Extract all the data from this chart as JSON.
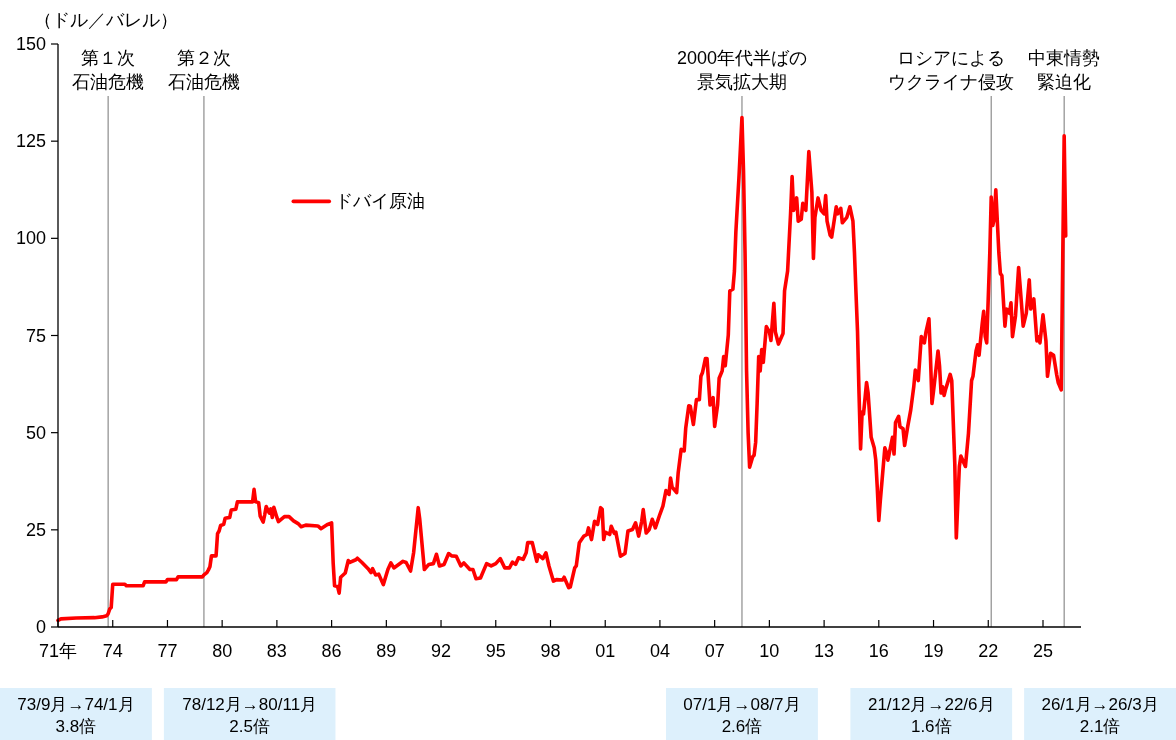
{
  "chart_data": {
    "type": "line",
    "ylabel": "（ドル／バレル）",
    "legend": "top left",
    "x": [
      "1971-01",
      "1971-03",
      "1972-01",
      "1973-01",
      "1973-06",
      "1973-09",
      "1973-10",
      "1973-11",
      "1973-12",
      "1974-01",
      "1974-09",
      "1974-10",
      "1975-09",
      "1975-10",
      "1976-12",
      "1977-01",
      "1977-07",
      "1977-08",
      "1978-12",
      "1979-01",
      "1979-03",
      "1979-04",
      "1979-05",
      "1979-06",
      "1979-09",
      "1979-10",
      "1979-11",
      "1979-12",
      "1980-02",
      "1980-03",
      "1980-06",
      "1980-07",
      "1980-10",
      "1980-11",
      "1981-09",
      "1981-10",
      "1981-11",
      "1982-01",
      "1982-02",
      "1982-04",
      "1982-05",
      "1982-06",
      "1982-08",
      "1982-09",
      "1982-10",
      "1982-11",
      "1983-01",
      "1983-02",
      "1983-06",
      "1983-09",
      "1983-12",
      "1984-03",
      "1984-05",
      "1984-08",
      "1985-04",
      "1985-06",
      "1985-10",
      "1986-01",
      "1986-02",
      "1986-03",
      "1986-05",
      "1986-06",
      "1986-07",
      "1986-10",
      "1986-12",
      "1987-01",
      "1987-05",
      "1987-06",
      "1987-09",
      "1988-01",
      "1988-03",
      "1988-04",
      "1988-06",
      "1988-08",
      "1988-11",
      "1989-02",
      "1989-04",
      "1989-06",
      "1989-12",
      "1990-02",
      "1990-05",
      "1990-07",
      "1990-10",
      "1990-11",
      "1991-02",
      "1991-05",
      "1991-08",
      "1991-10",
      "1991-12",
      "1992-03",
      "1992-06",
      "1992-08",
      "1992-11",
      "1993-02",
      "1993-04",
      "1993-08",
      "1993-10",
      "1993-12",
      "1994-03",
      "1994-07",
      "1994-10",
      "1995-01",
      "1995-04",
      "1995-07",
      "1995-10",
      "1995-12",
      "1996-02",
      "1996-04",
      "1996-07",
      "1996-09",
      "1996-10",
      "1997-01",
      "1997-04",
      "1997-05",
      "1997-08",
      "1997-10",
      "1997-12",
      "1998-03",
      "1998-05",
      "1998-09",
      "1998-10",
      "1999-01",
      "1999-02",
      "1999-05",
      "1999-06",
      "1999-08",
      "1999-11",
      "2000-01",
      "2000-02",
      "2000-04",
      "2000-06",
      "2000-08",
      "2000-10",
      "2000-11",
      "2000-12",
      "2001-01",
      "2001-04",
      "2001-05",
      "2001-07",
      "2001-08",
      "2001-11",
      "2002-02",
      "2002-04",
      "2002-07",
      "2002-09",
      "2002-11",
      "2003-01",
      "2003-02",
      "2003-04",
      "2003-06",
      "2003-08",
      "2003-10",
      "2004-01",
      "2004-03",
      "2004-05",
      "2004-07",
      "2004-08",
      "2004-09",
      "2004-12",
      "2005-01",
      "2005-03",
      "2005-05",
      "2005-06",
      "2005-08",
      "2005-09",
      "2005-11",
      "2006-01",
      "2006-03",
      "2006-04",
      "2006-05",
      "2006-07",
      "2006-08",
      "2006-10",
      "2006-12",
      "2007-01",
      "2007-03",
      "2007-04",
      "2007-06",
      "2007-07",
      "2007-08",
      "2007-10",
      "2007-11",
      "2008-01",
      "2008-02",
      "2008-03",
      "2008-05",
      "2008-07",
      "2008-08",
      "2008-09",
      "2008-10",
      "2008-11",
      "2008-12",
      "2009-02",
      "2009-03",
      "2009-04",
      "2009-05",
      "2009-06",
      "2009-07",
      "2009-08",
      "2009-09",
      "2009-11",
      "2010-01",
      "2010-02",
      "2010-04",
      "2010-05",
      "2010-07",
      "2010-10",
      "2010-11",
      "2011-01",
      "2011-03",
      "2011-04",
      "2011-05",
      "2011-07",
      "2011-08",
      "2011-10",
      "2011-11",
      "2012-01",
      "2012-03",
      "2012-05",
      "2012-06",
      "2012-07",
      "2012-09",
      "2012-11",
      "2013-01",
      "2013-02",
      "2013-03",
      "2013-05",
      "2013-06",
      "2013-09",
      "2013-10",
      "2013-12",
      "2014-01",
      "2014-04",
      "2014-06",
      "2014-08",
      "2014-09",
      "2014-10",
      "2014-11",
      "2014-12",
      "2015-01",
      "2015-02",
      "2015-03",
      "2015-05",
      "2015-06",
      "2015-08",
      "2015-10",
      "2015-11",
      "2015-12",
      "2016-01",
      "2016-02",
      "2016-05",
      "2016-06",
      "2016-07",
      "2016-10",
      "2016-11",
      "2016-12",
      "2017-02",
      "2017-03",
      "2017-05",
      "2017-06",
      "2017-08",
      "2017-10",
      "2017-12",
      "2018-01",
      "2018-03",
      "2018-05",
      "2018-07",
      "2018-08",
      "2018-10",
      "2018-11",
      "2018-12",
      "2019-01",
      "2019-04",
      "2019-05",
      "2019-06",
      "2019-07",
      "2019-08",
      "2019-09",
      "2019-12",
      "2020-01",
      "2020-03",
      "2020-04",
      "2020-06",
      "2020-07",
      "2020-10",
      "2020-12",
      "2021-02",
      "2021-03",
      "2021-05",
      "2021-06",
      "2021-07",
      "2021-09",
      "2021-10",
      "2021-11",
      "2021-12",
      "2022-02",
      "2022-03",
      "2022-04",
      "2022-05",
      "2022-06",
      "2022-08",
      "2022-09",
      "2022-10",
      "2022-12",
      "2023-01",
      "2023-03",
      "2023-04",
      "2023-05",
      "2023-07",
      "2023-09",
      "2023-10",
      "2023-12",
      "2024-02",
      "2024-04",
      "2024-05",
      "2024-07",
      "2024-09",
      "2024-10",
      "2024-11",
      "2025-01",
      "2025-03",
      "2025-04",
      "2025-06",
      "2025-08",
      "2025-10",
      "2025-11",
      "2025-12",
      "2026-01",
      "2026-03",
      "2026-04"
    ],
    "series": [
      {
        "name": "ドバイ原油",
        "color": "#ff0000",
        "values": [
          1.7,
          2.1,
          2.3,
          2.4,
          2.6,
          2.9,
          3.4,
          4.6,
          5.0,
          11.0,
          11.0,
          10.6,
          10.6,
          11.6,
          11.6,
          12.2,
          12.2,
          12.9,
          12.9,
          13.4,
          14.0,
          14.7,
          15.5,
          18.3,
          18.3,
          24.0,
          24.7,
          26.1,
          26.4,
          28.0,
          28.2,
          30.1,
          30.3,
          32.2,
          32.2,
          35.4,
          32.2,
          32.0,
          28.5,
          27.0,
          28.8,
          31.0,
          29.3,
          30.4,
          28.2,
          30.8,
          28.2,
          27.1,
          28.4,
          28.4,
          27.3,
          26.6,
          25.8,
          26.2,
          26.0,
          25.3,
          26.3,
          26.8,
          16.5,
          10.6,
          10.4,
          8.7,
          12.8,
          13.9,
          17.1,
          16.6,
          17.3,
          17.7,
          16.6,
          15.0,
          14.0,
          15.0,
          13.4,
          13.6,
          10.9,
          14.8,
          16.5,
          15.2,
          16.9,
          16.6,
          14.4,
          19.1,
          30.7,
          27.7,
          14.8,
          16.1,
          16.3,
          18.7,
          15.7,
          16.1,
          18.9,
          18.3,
          18.2,
          15.7,
          16.5,
          14.8,
          14.8,
          12.4,
          12.6,
          16.3,
          15.7,
          16.3,
          17.6,
          15.2,
          15.2,
          16.7,
          16.1,
          17.8,
          17.4,
          19.1,
          21.7,
          21.7,
          16.9,
          18.6,
          17.6,
          19.1,
          15.7,
          11.8,
          12.2,
          12.1,
          12.8,
          10.1,
          10.3,
          15.2,
          15.7,
          21.7,
          23.4,
          23.8,
          25.5,
          22.5,
          27.2,
          26.4,
          30.7,
          30.3,
          22.5,
          24.4,
          23.8,
          25.9,
          24.1,
          24.4,
          18.2,
          18.9,
          24.7,
          25.1,
          26.8,
          23.4,
          27.2,
          30.2,
          24.2,
          25.1,
          27.7,
          25.5,
          29.0,
          31.1,
          35.1,
          34.1,
          38.3,
          36.0,
          34.6,
          39.7,
          45.7,
          45.3,
          51.2,
          56.9,
          56.8,
          52.1,
          58.5,
          58.5,
          64.5,
          65.4,
          69.1,
          69.1,
          57.1,
          59.0,
          51.6,
          57.1,
          64.0,
          65.9,
          69.6,
          67.2,
          75.1,
          86.5,
          86.9,
          91.6,
          101.7,
          115.5,
          131.1,
          117.3,
          96.0,
          66.0,
          50.0,
          41.1,
          43.8,
          44.2,
          47.5,
          57.6,
          69.6,
          65.9,
          71.4,
          68.1,
          77.3,
          75.9,
          73.7,
          83.3,
          75.9,
          72.8,
          75.5,
          86.5,
          91.6,
          106.3,
          115.9,
          107.2,
          110.4,
          104.4,
          104.9,
          109.0,
          107.2,
          122.3,
          111.8,
          94.8,
          105.4,
          110.4,
          107.2,
          106.3,
          111.0,
          104.4,
          100.8,
          100.3,
          108.1,
          106.3,
          107.7,
          104.0,
          105.4,
          108.1,
          104.4,
          96.2,
          86.0,
          76.0,
          60.0,
          45.8,
          55.3,
          54.8,
          62.9,
          60.2,
          48.8,
          46.1,
          43.0,
          36.0,
          27.4,
          32.6,
          46.1,
          45.0,
          42.9,
          48.8,
          44.5,
          52.6,
          54.2,
          51.5,
          51.0,
          46.7,
          51.5,
          55.8,
          61.8,
          66.1,
          63.4,
          74.7,
          73.1,
          75.8,
          79.3,
          69.3,
          57.5,
          60.7,
          71.0,
          67.2,
          60.2,
          61.8,
          59.6,
          61.2,
          65.0,
          63.4,
          42.3,
          22.9,
          41.3,
          44.0,
          41.3,
          49.9,
          63.4,
          64.5,
          71.0,
          72.6,
          69.9,
          78.0,
          81.2,
          74.7,
          73.1,
          96.3,
          110.6,
          103.3,
          105.0,
          112.5,
          96.3,
          90.9,
          90.4,
          77.4,
          81.8,
          80.7,
          83.4,
          74.7,
          80.1,
          92.5,
          87.7,
          77.4,
          80.7,
          89.3,
          81.8,
          84.4,
          73.6,
          74.7,
          73.1,
          80.3,
          73.6,
          64.5,
          70.4,
          69.9,
          65.0,
          62.9,
          62.0,
          61.0,
          126.4,
          100.6
        ]
      }
    ],
    "xlim": [
      "1971-01",
      "2027-02"
    ],
    "xticks": [
      {
        "value": "1971-01",
        "label": "71年"
      },
      {
        "value": "1974-01",
        "label": "74"
      },
      {
        "value": "1977-01",
        "label": "77"
      },
      {
        "value": "1980-01",
        "label": "80"
      },
      {
        "value": "1983-01",
        "label": "83"
      },
      {
        "value": "1986-01",
        "label": "86"
      },
      {
        "value": "1989-01",
        "label": "89"
      },
      {
        "value": "1992-01",
        "label": "92"
      },
      {
        "value": "1995-01",
        "label": "95"
      },
      {
        "value": "1998-01",
        "label": "98"
      },
      {
        "value": "2001-01",
        "label": "01"
      },
      {
        "value": "2004-01",
        "label": "04"
      },
      {
        "value": "2007-01",
        "label": "07"
      },
      {
        "value": "2010-01",
        "label": "10"
      },
      {
        "value": "2013-01",
        "label": "13"
      },
      {
        "value": "2016-01",
        "label": "16"
      },
      {
        "value": "2019-01",
        "label": "19"
      },
      {
        "value": "2022-01",
        "label": "22"
      },
      {
        "value": "2025-01",
        "label": "25"
      }
    ],
    "ylim": [
      0,
      150
    ],
    "yticks": [
      0,
      25,
      50,
      75,
      100,
      125,
      150
    ],
    "ref_lines": [
      {
        "axis": "x",
        "value": "1973-10",
        "label": "第１次石油危機",
        "color": "#8c8c8c"
      },
      {
        "axis": "x",
        "value": "1979-01",
        "label": "第２次石油危機",
        "color": "#8c8c8c"
      },
      {
        "axis": "x",
        "value": "2008-07",
        "label": "2000年代半ばの景気拡大期",
        "color": "#8c8c8c"
      },
      {
        "axis": "x",
        "value": "2022-03",
        "label": "ロシアによるウクライナ侵攻",
        "color": "#8c8c8c"
      },
      {
        "axis": "x",
        "value": "2026-03",
        "label": "中東情勢緊迫化",
        "color": "#8c8c8c"
      }
    ],
    "annotations": [
      "73/9月→74/1月\n3.8倍",
      "78/12月→80/11月\n2.5倍",
      "07/1月→08/7月\n2.6倍",
      "21/12月→22/6月\n1.6倍",
      "26/1月→26/3月\n2.1倍"
    ]
  }
}
